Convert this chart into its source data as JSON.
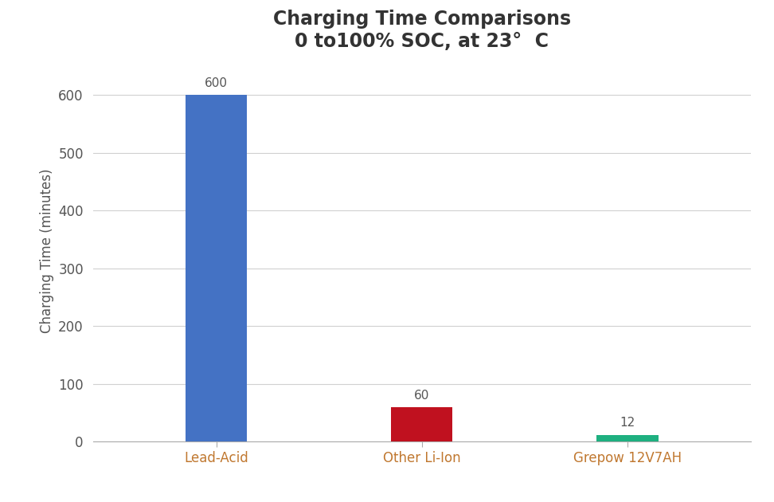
{
  "title_line1": "Charging Time Comparisons",
  "title_line2": "0 to100% SOC, at 23°  C",
  "categories": [
    "Lead-Acid",
    "Other Li-Ion",
    "Grepow 12V7AH"
  ],
  "values": [
    600,
    60,
    12
  ],
  "bar_colors": [
    "#4472C4",
    "#C0111F",
    "#1EB080"
  ],
  "ylabel": "Charging Time (minutes)",
  "ylim": [
    0,
    660
  ],
  "yticks": [
    0,
    100,
    200,
    300,
    400,
    500,
    600
  ],
  "background_color": "#FFFFFF",
  "grid_color": "#D0D0D0",
  "title_color": "#333333",
  "ylabel_color": "#555555",
  "ytick_color": "#555555",
  "xtick_color": "#C07830",
  "annotation_color": "#555555",
  "bar_width": 0.3,
  "title_fontsize": 17,
  "axis_label_fontsize": 12,
  "tick_fontsize": 12,
  "annotation_fontsize": 11,
  "xlim": [
    -0.6,
    2.6
  ]
}
